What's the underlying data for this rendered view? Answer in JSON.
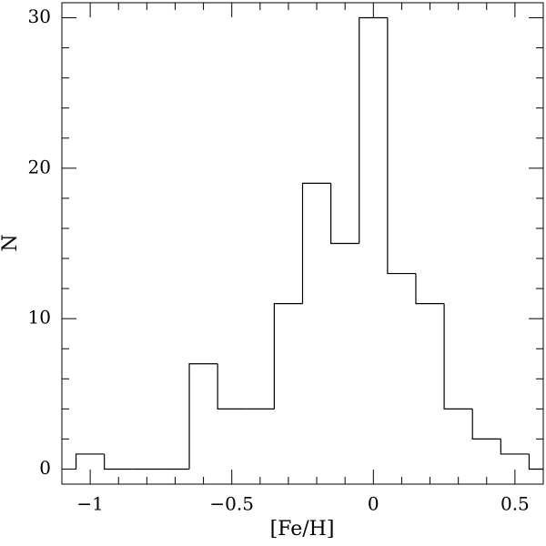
{
  "chart_data": {
    "type": "histogram",
    "x_label": "[Fe/H]",
    "y_label": "N",
    "bins": [
      -1.05,
      -0.95,
      -0.85,
      -0.75,
      -0.65,
      -0.55,
      -0.45,
      -0.35,
      -0.25,
      -0.15,
      -0.05,
      0.05,
      0.15,
      0.25,
      0.35,
      0.45,
      0.55,
      0.65
    ],
    "counts": [
      1,
      0,
      0,
      0,
      7,
      4,
      4,
      11,
      19,
      15,
      30,
      13,
      11,
      4,
      2,
      1,
      0
    ],
    "color": "#000000",
    "xlim": [
      -1.1,
      0.6
    ],
    "ylim": [
      -1,
      31
    ],
    "xticks": [
      {
        "value": -1,
        "label": "−1"
      },
      {
        "value": -0.5,
        "label": "−0.5"
      },
      0,
      0.5
    ],
    "yticks": [
      0,
      10,
      20,
      30
    ],
    "xminorticks": [
      -1.1,
      -0.9,
      -0.8,
      -0.7,
      -0.6,
      -0.4,
      -0.3,
      -0.2,
      -0.1,
      0.1,
      0.2,
      0.3,
      0.4,
      0.6
    ],
    "yminorticks": [
      2,
      4,
      6,
      8,
      12,
      14,
      16,
      18,
      22,
      24,
      26,
      28
    ]
  }
}
